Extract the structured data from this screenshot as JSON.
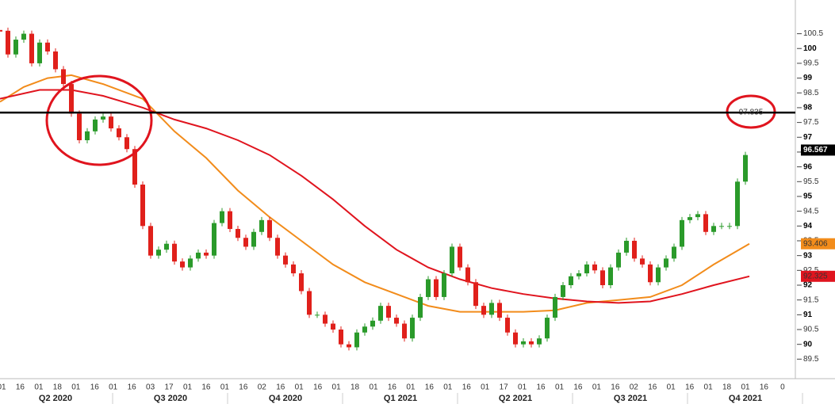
{
  "chart_data": {
    "type": "candlestick",
    "closes": [
      100.6,
      99.8,
      100.3,
      100.5,
      99.5,
      100.2,
      99.9,
      99.3,
      98.8,
      97.8,
      96.9,
      97.2,
      97.6,
      97.7,
      97.3,
      97.0,
      96.6,
      95.4,
      94.0,
      93.0,
      93.2,
      93.4,
      92.8,
      92.6,
      92.9,
      93.1,
      93.0,
      94.1,
      94.5,
      93.9,
      93.6,
      93.3,
      93.8,
      94.2,
      93.6,
      93.0,
      92.7,
      92.4,
      91.8,
      91.0,
      91.0,
      90.7,
      90.5,
      90.0,
      89.9,
      90.4,
      90.6,
      90.8,
      91.3,
      90.9,
      90.7,
      90.2,
      90.9,
      91.6,
      92.2,
      91.6,
      92.4,
      93.3,
      92.6,
      92.1,
      91.3,
      91.0,
      91.4,
      90.9,
      90.4,
      90.0,
      90.1,
      90.0,
      90.2,
      90.9,
      91.6,
      92.0,
      92.3,
      92.4,
      92.7,
      92.5,
      92.0,
      92.6,
      93.1,
      93.5,
      92.9,
      92.7,
      92.1,
      92.6,
      92.9,
      93.3,
      94.2,
      94.3,
      94.4,
      93.8,
      94.0,
      94.0,
      94.0,
      95.5,
      96.4
    ],
    "up_color": "#2a9a2a",
    "down_color": "#e0201b",
    "moving_averages": [
      {
        "color": "#f28c1b",
        "x": [
          0,
          3,
          6,
          9,
          13,
          18,
          22,
          26,
          30,
          34,
          38,
          42,
          46,
          50,
          54,
          58,
          62,
          66,
          70,
          74,
          78,
          82,
          86,
          90,
          94.5
        ],
        "values": [
          98.2,
          98.7,
          99.0,
          99.1,
          98.8,
          98.3,
          97.2,
          96.3,
          95.2,
          94.3,
          93.5,
          92.7,
          92.1,
          91.7,
          91.3,
          91.1,
          91.1,
          91.1,
          91.15,
          91.4,
          91.5,
          91.6,
          92.0,
          92.7,
          93.4
        ],
        "last_label": "93.406"
      },
      {
        "color": "#e0141e",
        "x": [
          0,
          5,
          9,
          13,
          18,
          22,
          26,
          30,
          34,
          38,
          42,
          46,
          50,
          54,
          58,
          62,
          66,
          70,
          74,
          78,
          82,
          86,
          90,
          94.5
        ],
        "values": [
          98.3,
          98.6,
          98.6,
          98.4,
          98.0,
          97.6,
          97.3,
          96.9,
          96.4,
          95.7,
          94.9,
          94.0,
          93.2,
          92.6,
          92.2,
          91.9,
          91.7,
          91.55,
          91.45,
          91.4,
          91.45,
          91.7,
          92.0,
          92.3
        ],
        "last_label": "92.325"
      }
    ],
    "last_price": 96.567,
    "hline": {
      "value": 97.835,
      "label": "97.835"
    },
    "xlim": [
      0,
      100.3
    ],
    "ylim": [
      88.84,
      101.64
    ],
    "yticks": [
      89.5,
      90,
      90.5,
      91,
      91.5,
      92,
      92.5,
      93,
      93.5,
      94,
      94.5,
      95,
      95.5,
      96,
      96.5,
      97,
      97.5,
      98,
      98.5,
      99,
      99.5,
      100,
      100.5
    ],
    "date_labels": [
      "01",
      "16",
      "01",
      "18",
      "01",
      "16",
      "01",
      "16",
      "03",
      "17",
      "01",
      "16",
      "01",
      "16",
      "02",
      "16",
      "01",
      "16",
      "01",
      "18",
      "01",
      "16",
      "01",
      "16",
      "01",
      "16",
      "01",
      "17",
      "01",
      "16",
      "01",
      "16",
      "01",
      "16",
      "02",
      "16",
      "01",
      "16",
      "01",
      "18",
      "01",
      "16",
      "0"
    ],
    "quarters": [
      "Q2 2020",
      "Q3 2020",
      "Q4 2020",
      "Q1 2021",
      "Q2 2021",
      "Q3 2021",
      "Q4 2021"
    ]
  }
}
